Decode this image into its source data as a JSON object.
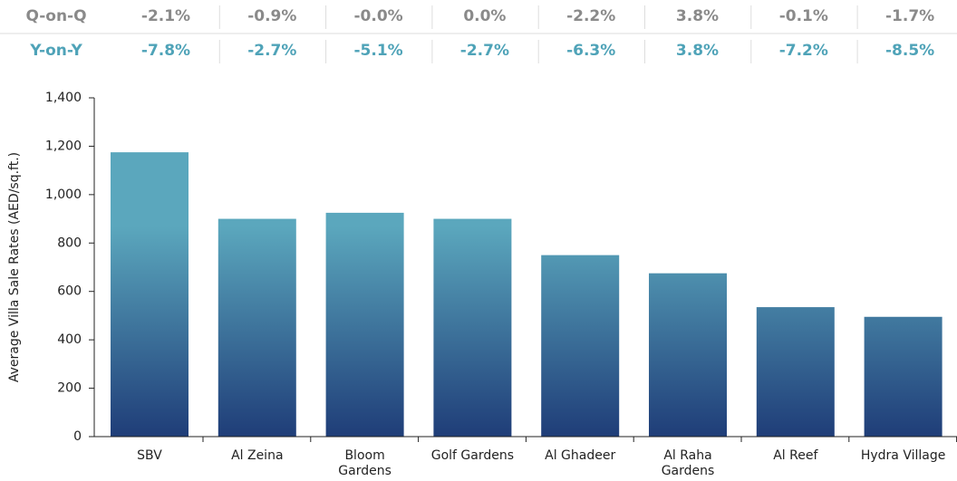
{
  "table": {
    "rows": [
      {
        "label": "Q-on-Q",
        "cells": [
          "-2.1%",
          "-0.9%",
          "-0.0%",
          "0.0%",
          "-2.2%",
          "3.8%",
          "-0.1%",
          "-1.7%"
        ]
      },
      {
        "label": "Y-on-Y",
        "cells": [
          "-7.8%",
          "-2.7%",
          "-5.1%",
          "-2.7%",
          "-6.3%",
          "3.8%",
          "-7.2%",
          "-8.5%"
        ]
      }
    ]
  },
  "chart_data": {
    "type": "bar",
    "y_label": "Average Villa Sale Rates (AED/sq.ft.)",
    "categories": [
      "SBV",
      "Al Zeina",
      "Bloom\nGardens",
      "Golf Gardens",
      "Al Ghadeer",
      "Al Raha\nGardens",
      "Al Reef",
      "Hydra Village"
    ],
    "values": [
      1175,
      900,
      925,
      900,
      750,
      675,
      535,
      495
    ],
    "color": [
      "#5ba7bd",
      "#1f3d78"
    ],
    "ylim": [
      0,
      1400
    ],
    "yticks": [
      0,
      200,
      400,
      600,
      800,
      {
        "value": 1000,
        "label": "1,000"
      },
      {
        "value": 1200,
        "label": "1,200"
      },
      {
        "value": 1400,
        "label": "1,400"
      }
    ],
    "grid": false
  }
}
